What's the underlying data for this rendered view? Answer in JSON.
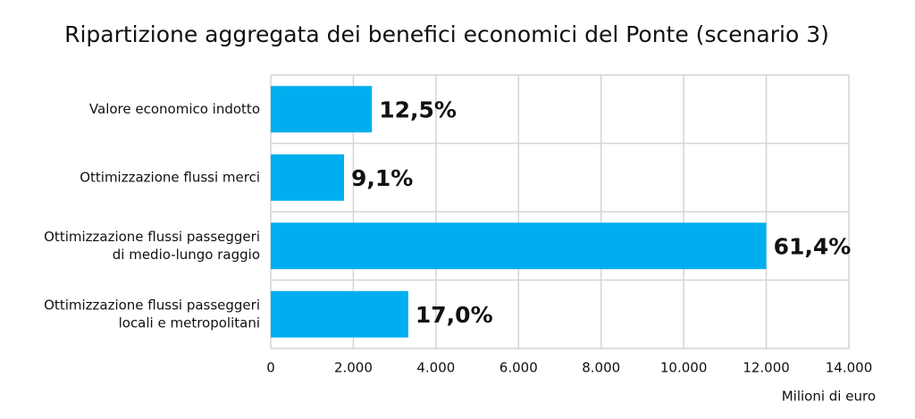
{
  "chart_data": {
    "type": "bar",
    "orientation": "horizontal",
    "title": "Ripartizione aggregata dei benefici economici del Ponte (scenario 3)",
    "categories": [
      "Valore economico indotto",
      "Ottimizzazione flussi merci",
      [
        "Ottimizzazione flussi passeggeri",
        "di medio-lungo raggio"
      ],
      [
        "Ottimizzazione flussi passeggeri",
        "locali e metropolitani"
      ]
    ],
    "values": [
      2450,
      1775,
      12000,
      3330
    ],
    "value_labels": [
      "12,5%",
      "9,1%",
      "61,4%",
      "17,0%"
    ],
    "color": "#00aeef",
    "xlabel": "Milioni di euro",
    "xlim": [
      0,
      14000
    ],
    "xticks": [
      0,
      {
        "value": 2000,
        "label": "2.000"
      },
      {
        "value": 4000,
        "label": "4.000"
      },
      {
        "value": 6000,
        "label": "6.000"
      },
      {
        "value": 8000,
        "label": "8.000"
      },
      {
        "value": 10000,
        "label": "10.000"
      },
      {
        "value": 12000,
        "label": "12.000"
      },
      {
        "value": 14000,
        "label": "14.000"
      }
    ],
    "grid": true
  }
}
